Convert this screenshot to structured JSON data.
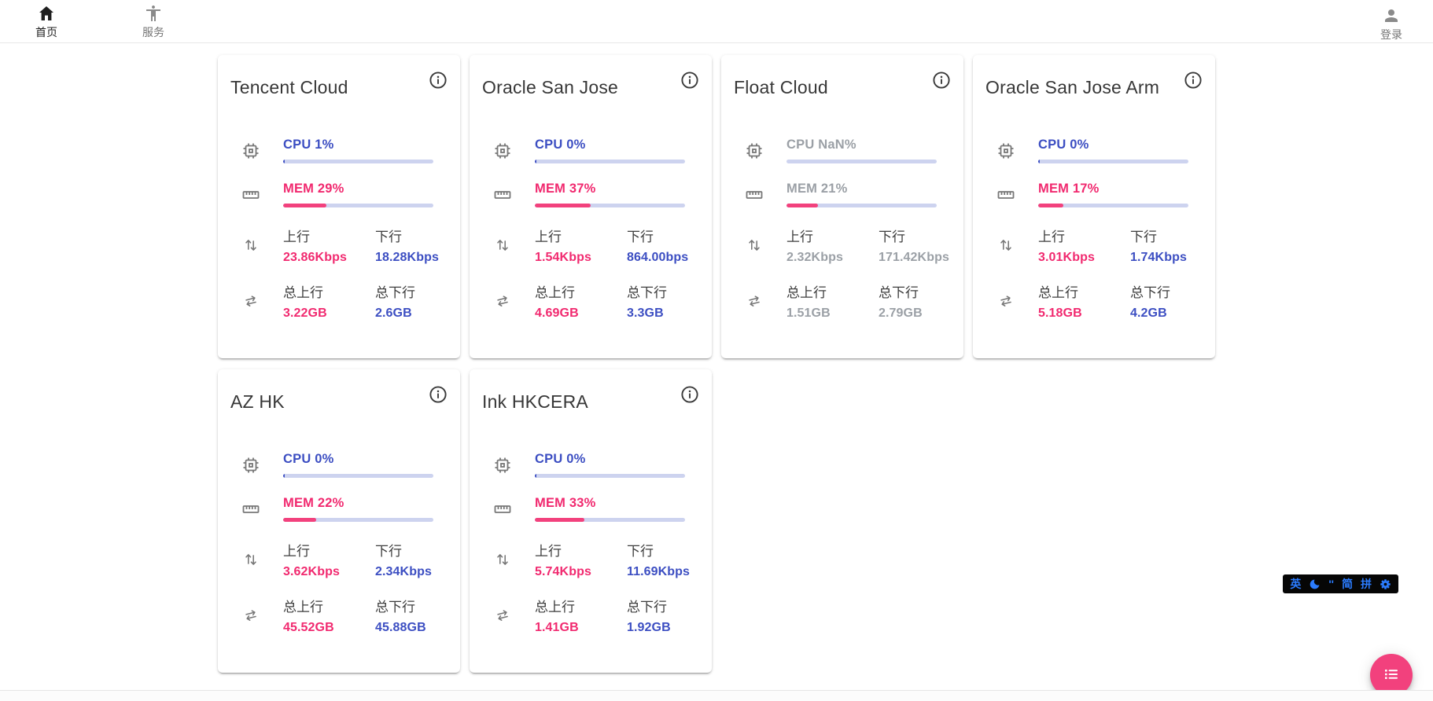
{
  "nav": {
    "home_label": "首页",
    "services_label": "服务",
    "login_label": "登录"
  },
  "card_labels": {
    "up": "上行",
    "down": "下行",
    "total_up": "总上行",
    "total_down": "总下行"
  },
  "servers": [
    {
      "name": "Tencent Cloud",
      "muted": false,
      "cpu_label": "CPU 1%",
      "cpu_pct": 1,
      "mem_label": "MEM 29%",
      "mem_pct": 29,
      "up_value": "23.86Kbps",
      "down_value": "18.28Kbps",
      "total_up_value": "3.22GB",
      "total_down_value": "2.6GB"
    },
    {
      "name": "Oracle San Jose",
      "muted": false,
      "cpu_label": "CPU 0%",
      "cpu_pct": 0,
      "mem_label": "MEM 37%",
      "mem_pct": 37,
      "up_value": "1.54Kbps",
      "down_value": "864.00bps",
      "total_up_value": "4.69GB",
      "total_down_value": "3.3GB"
    },
    {
      "name": "Float Cloud",
      "muted": true,
      "cpu_label": "CPU NaN%",
      "cpu_pct": null,
      "mem_label": "MEM 21%",
      "mem_pct": 21,
      "up_value": "2.32Kbps",
      "down_value": "171.42Kbps",
      "total_up_value": "1.51GB",
      "total_down_value": "2.79GB"
    },
    {
      "name": "Oracle San Jose Arm",
      "muted": false,
      "cpu_label": "CPU 0%",
      "cpu_pct": 0,
      "mem_label": "MEM 17%",
      "mem_pct": 17,
      "up_value": "3.01Kbps",
      "down_value": "1.74Kbps",
      "total_up_value": "5.18GB",
      "total_down_value": "4.2GB"
    },
    {
      "name": "AZ HK",
      "muted": false,
      "cpu_label": "CPU 0%",
      "cpu_pct": 0,
      "mem_label": "MEM 22%",
      "mem_pct": 22,
      "up_value": "3.62Kbps",
      "down_value": "2.34Kbps",
      "total_up_value": "45.52GB",
      "total_down_value": "45.88GB"
    },
    {
      "name": "Ink HKCERA",
      "muted": false,
      "cpu_label": "CPU 0%",
      "cpu_pct": 0,
      "mem_label": "MEM 33%",
      "mem_pct": 33,
      "up_value": "5.74Kbps",
      "down_value": "11.69Kbps",
      "total_up_value": "1.41GB",
      "total_down_value": "1.92GB"
    }
  ],
  "ime_bar": {
    "lang": "英",
    "punct": "''",
    "charset": "简",
    "scheme": "拼"
  },
  "colors": {
    "accent_blue": "#3c4ec2",
    "accent_pink": "#f1296f",
    "bar_track": "#cdd3ef",
    "bar_pink": "#f2417d",
    "muted_gray": "#9ba0a6",
    "fab_pink": "#f2417d",
    "ime_blue": "#2b7cff"
  }
}
